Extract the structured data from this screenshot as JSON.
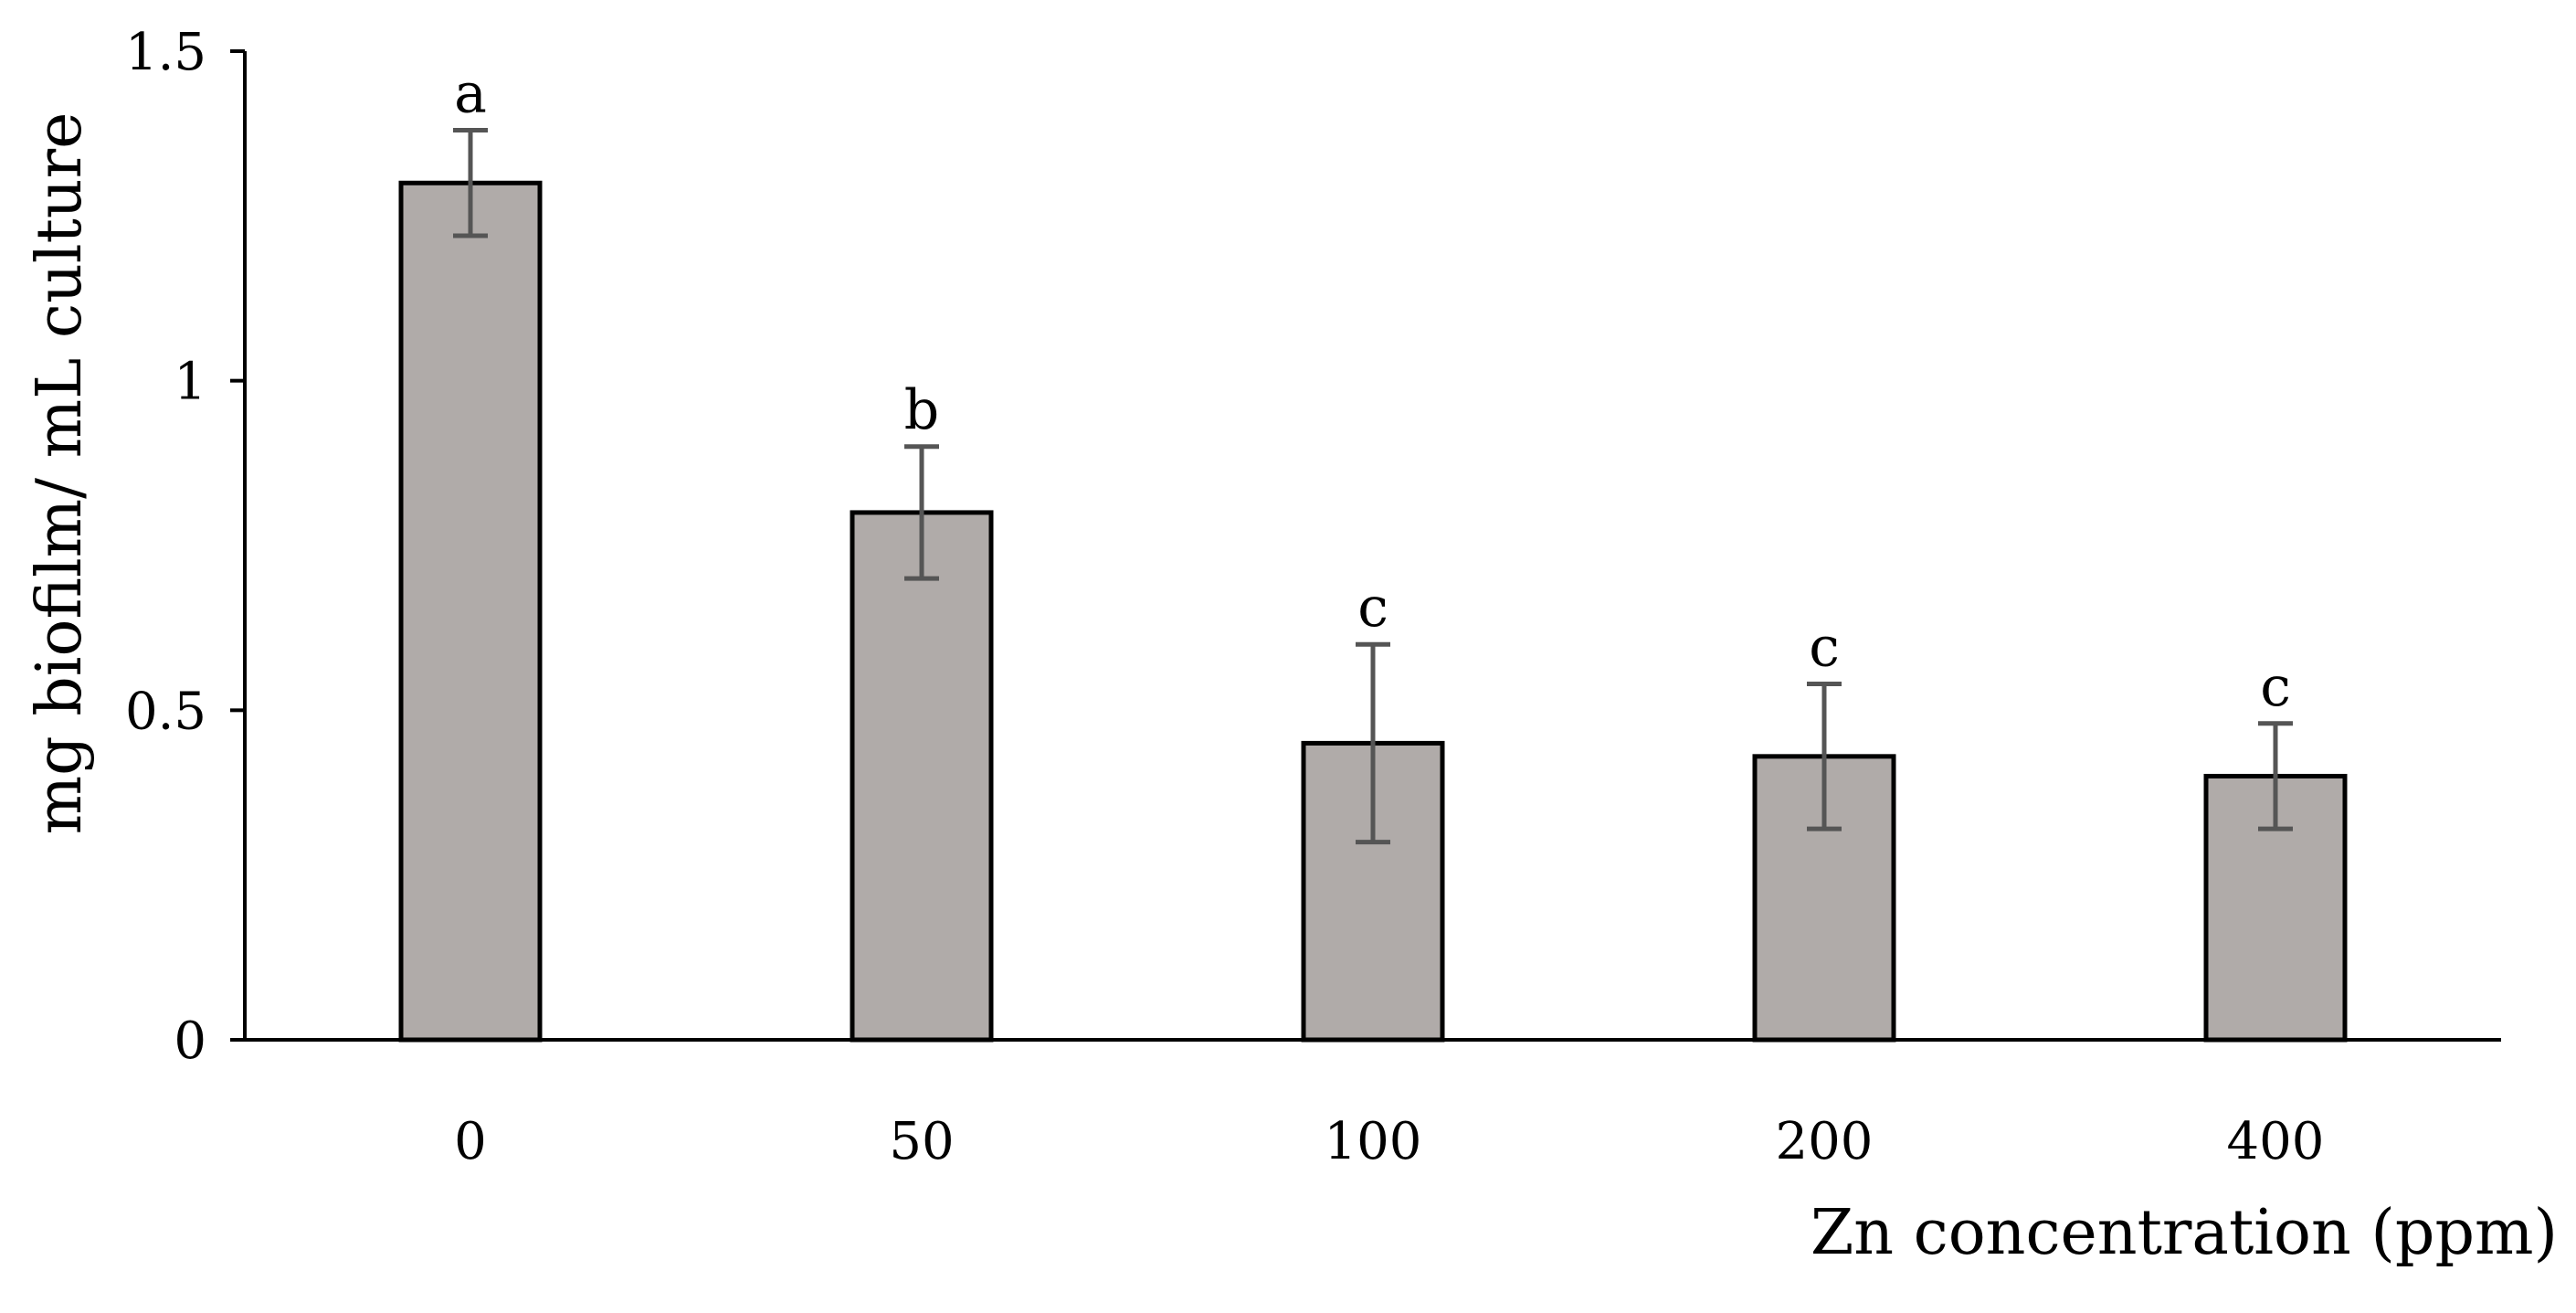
{
  "chart_data": {
    "type": "bar",
    "categories": [
      "0",
      "50",
      "100",
      "200",
      "400"
    ],
    "values": [
      1.3,
      0.8,
      0.45,
      0.43,
      0.4
    ],
    "errors": [
      0.08,
      0.1,
      0.15,
      0.11,
      0.08
    ],
    "significance_labels": [
      "a",
      "b",
      "c",
      "c",
      "c"
    ],
    "title": "",
    "xlabel": "Zn concentration (ppm)",
    "ylabel": "mg biofilm/ mL culture",
    "ylim": [
      0,
      1.5
    ],
    "yticks": [
      0,
      0.5,
      1,
      1.5
    ],
    "ytick_labels": [
      "0",
      "0.5",
      "1",
      "1.5"
    ],
    "grid": false,
    "legend": "none",
    "colors": {
      "bar_fill": "#b0aba9",
      "bar_stroke": "#000000",
      "error_bar": "#555555",
      "axis": "#000000"
    }
  }
}
